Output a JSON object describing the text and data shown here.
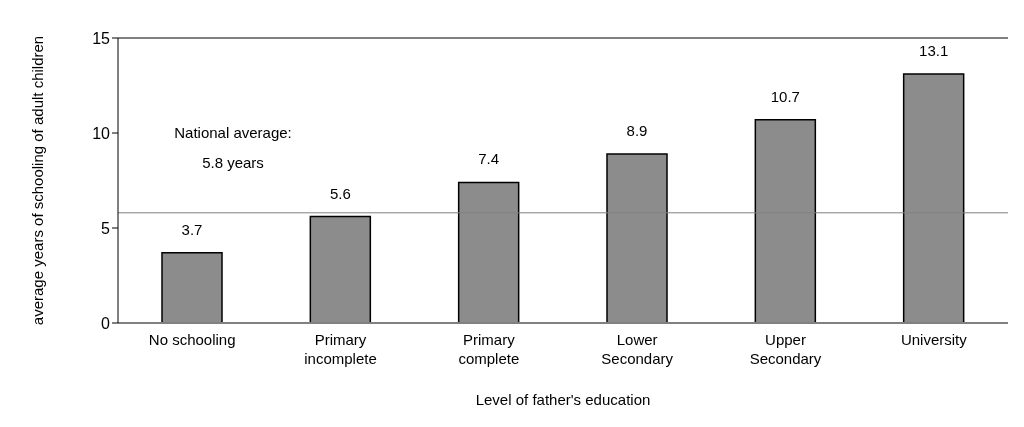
{
  "chart_data": {
    "type": "bar",
    "xlabel": "Level of father's education",
    "ylabel": "average years of schooling of adult children",
    "categories": [
      "No schooling",
      "Primary\nincomplete",
      "Primary\ncomplete",
      "Lower\nSecondary",
      "Upper\nSecondary",
      "University"
    ],
    "values": [
      3.7,
      5.6,
      7.4,
      8.9,
      10.7,
      13.1
    ],
    "color": "#8c8c8c",
    "data_labels": true,
    "ylim": [
      0,
      15
    ],
    "yticks": [
      0,
      5,
      10,
      15
    ],
    "grid": false,
    "ref_lines": [
      {
        "axis": "y",
        "value": 5.8,
        "label": "National average:\n5.8 years",
        "color": "#808080"
      }
    ]
  }
}
